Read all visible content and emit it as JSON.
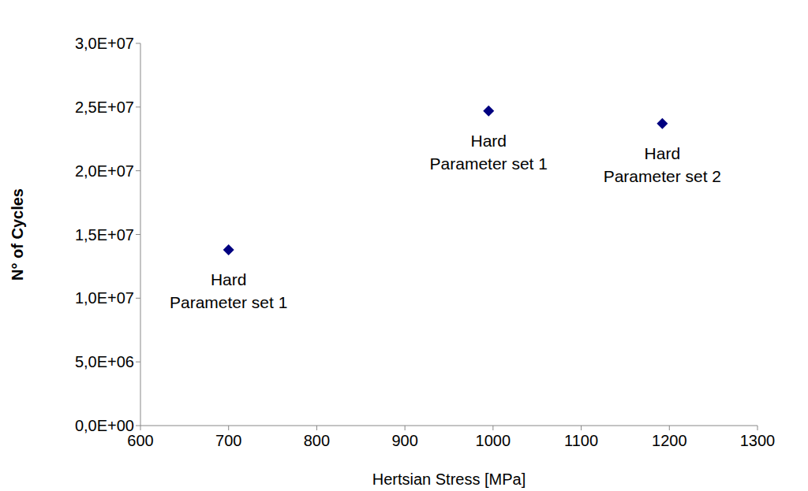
{
  "chart_data": {
    "type": "scatter",
    "x_label": "Hertsian Stress [MPa]",
    "y_label": "N° of Cycles",
    "series": [
      {
        "name": null,
        "color": "#000080",
        "marker": "diamond",
        "x": [
          700,
          995,
          1192
        ],
        "values": [
          13800000,
          24700000,
          23700000
        ],
        "labels": [
          [
            "Hard",
            "Parameter set 1"
          ],
          [
            "Hard",
            "Parameter set 1"
          ],
          [
            "Hard",
            "Parameter set 2"
          ]
        ]
      }
    ],
    "xlim": [
      600,
      1300
    ],
    "xticks": [
      600,
      700,
      800,
      900,
      1000,
      1100,
      1200,
      1300
    ],
    "ylim": [
      0,
      30000000
    ],
    "yticks": [
      {
        "value": 0,
        "label": "0,0E+00"
      },
      {
        "value": 5000000,
        "label": "5,0E+06"
      },
      {
        "value": 10000000,
        "label": "1,0E+07"
      },
      {
        "value": 15000000,
        "label": "1,5E+07"
      },
      {
        "value": 20000000,
        "label": "2,0E+07"
      },
      {
        "value": 25000000,
        "label": "2,5E+07"
      },
      {
        "value": 30000000,
        "label": "3,0E+07"
      }
    ],
    "grid": false
  }
}
